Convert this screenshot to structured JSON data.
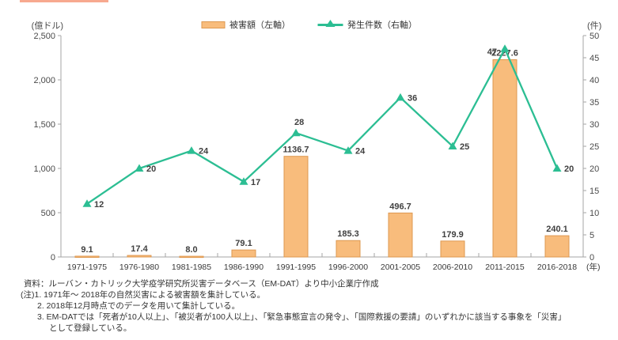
{
  "colors": {
    "bar_fill": "#F8BC7C",
    "bar_border": "#DE9850",
    "line": "#2CBE93",
    "value_label": "#404040",
    "axis": "#A5A5A5",
    "badge_strip": "#F7A98F"
  },
  "legend": {
    "items": [
      {
        "label": "被害額（左軸）",
        "swatch": "bar-swatch"
      },
      {
        "label": "発生件数（右軸）",
        "swatch": "line-swatch"
      }
    ]
  },
  "chart_data": {
    "type": "bar",
    "subtype": "combo-bar-line",
    "categories": [
      "1971-1975",
      "1976-1980",
      "1981-1985",
      "1986-1990",
      "1991-1995",
      "1996-2000",
      "2001-2005",
      "2006-2010",
      "2011-2015",
      "2016-2018"
    ],
    "x_suffix": "(年)",
    "series": [
      {
        "name": "被害額（左軸）",
        "type": "bar",
        "axis": "left",
        "values": [
          9.1,
          17.4,
          8.0,
          79.1,
          1136.7,
          185.3,
          496.7,
          179.9,
          2227.6,
          240.1
        ],
        "labels": [
          "9.1",
          "17.4",
          "8.0",
          "79.1",
          "1136.7",
          "185.3",
          "496.7",
          "179.9",
          "2227.6",
          "240.1"
        ]
      },
      {
        "name": "発生件数（右軸）",
        "type": "line",
        "axis": "right",
        "values": [
          12,
          20,
          24,
          17,
          28,
          24,
          36,
          25,
          47,
          20
        ],
        "labels": [
          "12",
          "20",
          "24",
          "17",
          "28",
          "24",
          "36",
          "25",
          "47",
          "20"
        ]
      }
    ],
    "left_axis": {
      "unit": "(億ドル)",
      "min": 0,
      "max": 2500,
      "step": 500,
      "tick_labels": [
        "0",
        "500",
        "1,000",
        "1,500",
        "2,000",
        "2,500"
      ]
    },
    "right_axis": {
      "unit": "(件)",
      "min": 0,
      "max": 50,
      "step": 5,
      "tick_labels": [
        "0",
        "5",
        "10",
        "15",
        "20",
        "25",
        "30",
        "35",
        "40",
        "45",
        "50"
      ]
    },
    "grid": false,
    "legend_position": "top"
  },
  "footer": {
    "source": "資料：ルーバン・カトリック大学疫学研究所災害データベース（EM-DAT）より中小企業庁作成",
    "notes": [
      "(注)1. 1971年～ 2018年の自然災害による被害額を集計している。",
      "2. 2018年12月時点でのデータを用いて集計している。",
      "3. EM-DATでは「死者が10人以上」、「被災者が100人以上」、「緊急事態宣言の発令」、「国際救援の要請」のいずれかに該当する事象を「災害」",
      "として登録している。"
    ]
  }
}
